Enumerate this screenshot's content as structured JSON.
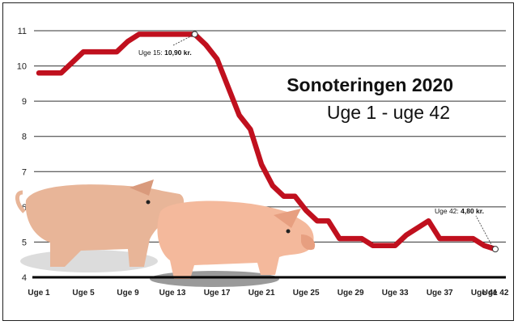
{
  "chart_data": {
    "type": "line",
    "title": "Sonoteringen 2020",
    "subtitle": "Uge 1 - uge 42",
    "xlabel": "",
    "ylabel": "",
    "ylim": [
      4,
      11
    ],
    "yticks": [
      "4",
      "5",
      "6",
      "7",
      "8",
      "9",
      "10",
      "11"
    ],
    "xtick_labels": [
      "Uge 1",
      "Uge 5",
      "Uge 9",
      "Uge 13",
      "Uge 17",
      "Uge 21",
      "Uge 25",
      "Uge 29",
      "Uge 33",
      "Uge 37",
      "Uge 41",
      "Uge 42"
    ],
    "x": [
      1,
      2,
      3,
      4,
      5,
      6,
      7,
      8,
      9,
      10,
      11,
      12,
      13,
      14,
      15,
      16,
      17,
      18,
      19,
      20,
      21,
      22,
      23,
      24,
      25,
      26,
      27,
      28,
      29,
      30,
      31,
      32,
      33,
      34,
      35,
      36,
      37,
      38,
      39,
      40,
      41,
      42
    ],
    "values": [
      9.8,
      9.8,
      9.8,
      10.1,
      10.4,
      10.4,
      10.4,
      10.4,
      10.7,
      10.9,
      10.9,
      10.9,
      10.9,
      10.9,
      10.9,
      10.6,
      10.2,
      9.4,
      8.6,
      8.2,
      7.2,
      6.6,
      6.3,
      6.3,
      5.9,
      5.6,
      5.6,
      5.1,
      5.1,
      5.1,
      4.9,
      4.9,
      4.9,
      5.2,
      5.4,
      5.6,
      5.1,
      5.1,
      5.1,
      5.1,
      4.9,
      4.8
    ],
    "series_color": "#c0101e",
    "annotations": [
      {
        "x": 15,
        "y": 10.9,
        "label": "Uge 15: ",
        "value_label": "10,90 kr."
      },
      {
        "x": 42,
        "y": 4.8,
        "label": "Uge 42: ",
        "value_label": "4,80 kr."
      }
    ],
    "grid": true
  }
}
